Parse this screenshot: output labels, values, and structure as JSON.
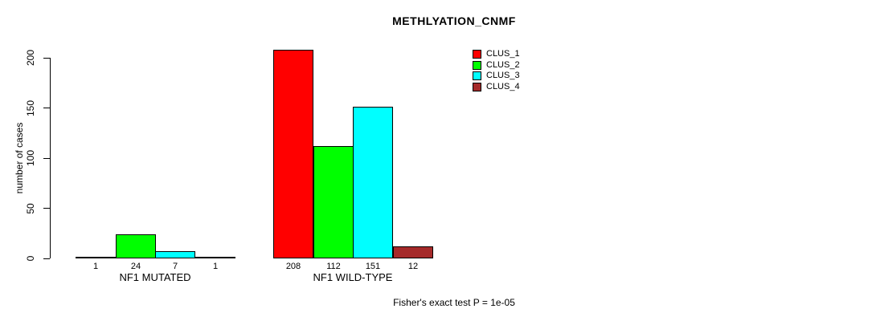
{
  "chart_data": {
    "type": "bar",
    "title": "METHLYATION_CNMF",
    "ylabel": "number of cases",
    "xlabel": "",
    "ylim": [
      0,
      200
    ],
    "yticks": [
      0,
      50,
      100,
      150,
      200
    ],
    "grid": false,
    "legend_position": "top-right",
    "categories": [
      "NF1 MUTATED",
      "NF1 WILD-TYPE"
    ],
    "series": [
      {
        "name": "CLUS_1",
        "color": "#ff0000",
        "values": [
          1,
          208
        ]
      },
      {
        "name": "CLUS_2",
        "color": "#00ff00",
        "values": [
          24,
          112
        ]
      },
      {
        "name": "CLUS_3",
        "color": "#00ffff",
        "values": [
          7,
          151
        ]
      },
      {
        "name": "CLUS_4",
        "color": "#a52a2a",
        "values": [
          1,
          12
        ]
      }
    ],
    "bar_value_labels": {
      "NF1 MUTATED": [
        "1",
        "24",
        "7",
        "1"
      ],
      "NF1 WILD-TYPE": [
        "208",
        "112",
        "151",
        "12"
      ]
    },
    "annotation": "Fisher's exact test P = 1e-05"
  }
}
